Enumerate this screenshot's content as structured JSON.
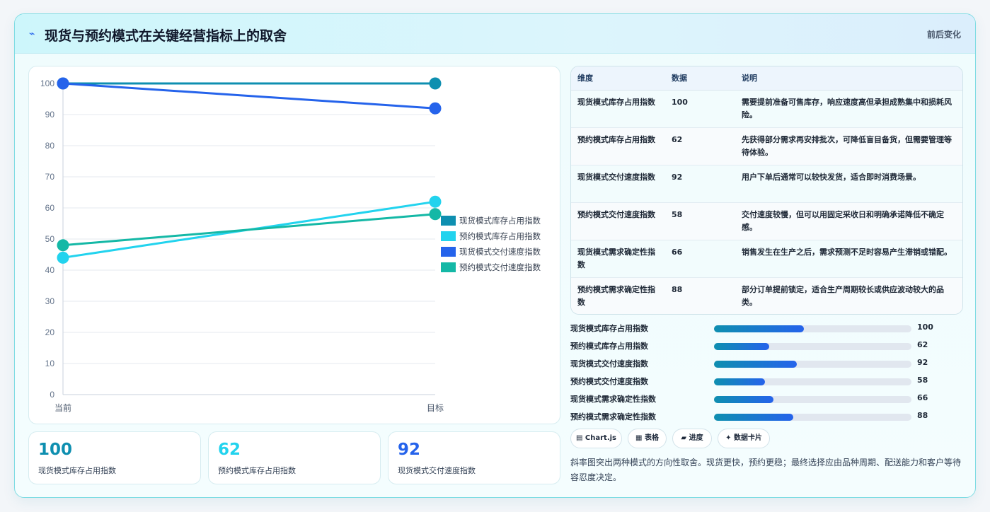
{
  "header": {
    "icon": "lightning-icon",
    "title": "现货与预约模式在关键经营指标上的取舍",
    "right_label": "前后变化"
  },
  "chart_data": {
    "type": "line",
    "categories": [
      "当前",
      "目标"
    ],
    "ylim": [
      0,
      100
    ],
    "yticks": [
      0,
      10,
      20,
      30,
      40,
      50,
      60,
      70,
      80,
      90,
      100
    ],
    "grid": true,
    "legend_position": "right",
    "series": [
      {
        "name": "现货模式库存占用指数",
        "values": [
          100,
          100
        ],
        "color": "#0e8fb0"
      },
      {
        "name": "预约模式库存占用指数",
        "values": [
          44,
          62
        ],
        "color": "#22d3ee"
      },
      {
        "name": "现货模式交付速度指数",
        "values": [
          100,
          92
        ],
        "color": "#2563eb"
      },
      {
        "name": "预约模式交付速度指数",
        "values": [
          48,
          58
        ],
        "color": "#14b8a6"
      }
    ]
  },
  "stats": [
    {
      "value": "100",
      "label": "现货模式库存占用指数",
      "color": "#0e8fb0"
    },
    {
      "value": "62",
      "label": "预约模式库存占用指数",
      "color": "#22d3ee"
    },
    {
      "value": "92",
      "label": "现货模式交付速度指数",
      "color": "#2563eb"
    }
  ],
  "table": {
    "headers": [
      "维度",
      "数据",
      "说明"
    ],
    "rows": [
      {
        "dim": "现货模式库存占用指数",
        "val": "100",
        "desc": "需要提前准备可售库存，响应速度高但承担成熟集中和损耗风险。"
      },
      {
        "dim": "预约模式库存占用指数",
        "val": "62",
        "desc": "先获得部分需求再安排批次，可降低盲目备货，但需要管理等待体验。"
      },
      {
        "dim": "现货模式交付速度指数",
        "val": "92",
        "desc": "用户下单后通常可以较快发货，适合即时消费场景。"
      },
      {
        "dim": "预约模式交付速度指数",
        "val": "58",
        "desc": "交付速度较慢，但可以用固定采收日和明确承诺降低不确定感。"
      },
      {
        "dim": "现货模式需求确定性指数",
        "val": "66",
        "desc": "销售发生在生产之后，需求预测不足时容易产生滞销或错配。"
      },
      {
        "dim": "预约模式需求确定性指数",
        "val": "88",
        "desc": "部分订单提前锁定，适合生产周期较长或供应波动较大的品类。"
      }
    ]
  },
  "bars": [
    {
      "label": "现货模式库存占用指数",
      "value": 100,
      "display": "100",
      "fraction": 0.455
    },
    {
      "label": "预约模式库存占用指数",
      "value": 62,
      "display": "62",
      "fraction": 0.28
    },
    {
      "label": "现货模式交付速度指数",
      "value": 92,
      "display": "92",
      "fraction": 0.419
    },
    {
      "label": "预约模式交付速度指数",
      "value": 58,
      "display": "58",
      "fraction": 0.258
    },
    {
      "label": "现货模式需求确定性指数",
      "value": 66,
      "display": "66",
      "fraction": 0.301
    },
    {
      "label": "预约模式需求确定性指数",
      "value": 88,
      "display": "88",
      "fraction": 0.401
    }
  ],
  "chips": [
    {
      "icon": "chart-icon",
      "glyph": "▤",
      "label": "Chart.js"
    },
    {
      "icon": "table-icon",
      "glyph": "▦",
      "label": "表格"
    },
    {
      "icon": "progress-icon",
      "glyph": "▰",
      "label": "进度"
    },
    {
      "icon": "card-icon",
      "glyph": "✦",
      "label": "数据卡片"
    }
  ],
  "note": "斜率图突出两种模式的方向性取舍。现货更快，预约更稳；最终选择应由品种周期、配送能力和客户等待容忍度决定。"
}
